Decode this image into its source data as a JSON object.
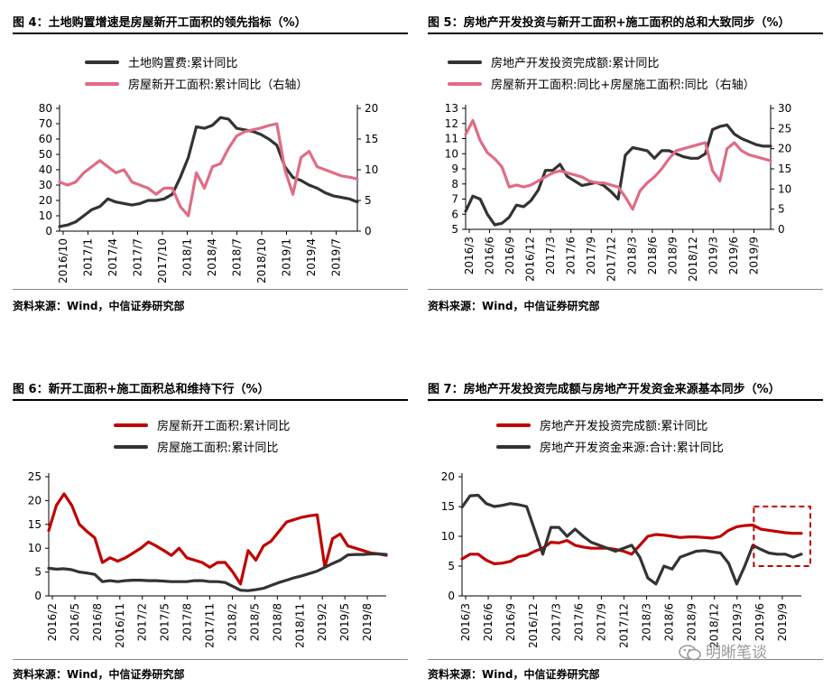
{
  "charts": [
    {
      "title": "图 4：土地购置增速是房屋新开工面积的领先指标（%）",
      "source": "资料来源：Wind，中信证券研究部"
    },
    {
      "title": "图 5：房地产开发投资与新开工面积+施工面积的总和大致同步（%）",
      "source": "资料来源：Wind，中信证券研究部"
    },
    {
      "title": "图 6：新开工面积+施工面积总和维持下行（%）",
      "source": "资料来源：Wind，中信证券研究部"
    },
    {
      "title": "图 7：房地产开发投资完成额与房地产开发资金来源基本同步（%）",
      "source": "资料来源：Wind，中信证券研究部"
    }
  ],
  "watermark": {
    "text": "明晰笔谈"
  },
  "chart_data": [
    {
      "type": "line",
      "x_ticks": [
        "2016/10",
        "2017/1",
        "2017/4",
        "2017/7",
        "2017/10",
        "2018/1",
        "2018/4",
        "2018/7",
        "2018/10",
        "2019/1",
        "2019/4",
        "2019/7"
      ],
      "ylim_left": [
        0,
        80
      ],
      "yticks_left": [
        0,
        10,
        20,
        30,
        40,
        50,
        60,
        70,
        80
      ],
      "ylim_right": [
        0,
        20
      ],
      "yticks_right": [
        0,
        5,
        10,
        15,
        20
      ],
      "grid": false,
      "legend_position": "top-left",
      "series": [
        {
          "name": "土地购置费:累计同比",
          "axis": "left",
          "color": "#333333",
          "values": [
            3,
            4,
            6,
            10,
            14,
            16,
            21,
            19,
            18,
            17,
            18,
            20,
            20,
            21,
            24,
            35,
            48,
            68,
            67,
            69,
            74,
            73,
            67,
            66,
            65,
            63,
            60,
            56,
            42,
            35,
            33,
            30,
            28,
            25,
            23,
            22,
            21,
            19
          ]
        },
        {
          "name": "房屋新开工面积:累计同比（右轴）",
          "axis": "right",
          "color": "#e06c85",
          "values": [
            8,
            7.5,
            8,
            9.5,
            10.5,
            11.5,
            10.5,
            9.5,
            10,
            8,
            7.5,
            7,
            6,
            7,
            7,
            4,
            2.5,
            9.5,
            7,
            10.5,
            11,
            13.5,
            15.5,
            16.2,
            16.5,
            16.8,
            17.2,
            17.5,
            10,
            6,
            12,
            13,
            10.5,
            10,
            9.5,
            9,
            8.8,
            8.5
          ]
        }
      ]
    },
    {
      "type": "line",
      "x_ticks": [
        "2016/3",
        "2016/6",
        "2016/9",
        "2016/12",
        "2017/3",
        "2017/6",
        "2017/9",
        "2017/12",
        "2018/3",
        "2018/6",
        "2018/9",
        "2018/12",
        "2019/3",
        "2019/6",
        "2019/9"
      ],
      "ylim_left": [
        5,
        13
      ],
      "yticks_left": [
        5,
        6,
        7,
        8,
        9,
        10,
        11,
        12,
        13
      ],
      "ylim_right": [
        0,
        30
      ],
      "yticks_right": [
        0,
        5,
        10,
        15,
        20,
        25,
        30
      ],
      "grid": false,
      "legend_position": "top-left",
      "series": [
        {
          "name": "房地产开发投资完成额:累计同比",
          "axis": "left",
          "color": "#333333",
          "values": [
            6.2,
            7.2,
            7.0,
            6.0,
            5.3,
            5.4,
            5.8,
            6.6,
            6.5,
            6.9,
            7.6,
            8.9,
            8.9,
            9.3,
            8.5,
            8.2,
            7.9,
            8.0,
            8.1,
            7.9,
            7.5,
            7.0,
            9.9,
            10.4,
            10.3,
            10.2,
            9.7,
            10.2,
            10.2,
            10.0,
            9.8,
            9.7,
            9.7,
            10.0,
            11.6,
            11.8,
            11.9,
            11.3,
            11.0,
            10.8,
            10.6,
            10.5,
            10.5
          ]
        },
        {
          "name": "房屋新开工面积:同比+房屋施工面积:同比（右轴）",
          "axis": "right",
          "color": "#e06c85",
          "values": [
            23.5,
            27.0,
            22.0,
            19.0,
            17.5,
            15.5,
            10.5,
            11.0,
            10.5,
            11.0,
            12.0,
            13.0,
            14.0,
            14.5,
            14.0,
            13.5,
            13.0,
            12.0,
            11.5,
            11.5,
            11.0,
            10.5,
            8.0,
            5.0,
            9.5,
            11.5,
            13.0,
            15.0,
            17.5,
            19.5,
            20.0,
            20.5,
            21.0,
            21.5,
            14.5,
            12.0,
            20.0,
            21.5,
            19.5,
            18.5,
            18.0,
            17.5,
            17.0
          ]
        }
      ]
    },
    {
      "type": "line",
      "x_ticks": [
        "2016/2",
        "2016/5",
        "2016/8",
        "2016/11",
        "2017/2",
        "2017/5",
        "2017/8",
        "2017/11",
        "2018/2",
        "2018/5",
        "2018/8",
        "2018/11",
        "2019/2",
        "2019/5",
        "2019/8"
      ],
      "ylim": [
        0,
        25
      ],
      "yticks": [
        0,
        5,
        10,
        15,
        20,
        25
      ],
      "grid": false,
      "legend_position": "top-left",
      "annotation": "dashed box highlighting 2019/2–2019/8",
      "series": [
        {
          "name": "房屋新开工面积:累计同比",
          "color": "#c00000",
          "values": [
            13.7,
            19.0,
            21.4,
            19.0,
            15.0,
            13.5,
            12.2,
            7.0,
            8.0,
            7.3,
            8.0,
            9.0,
            10.0,
            11.3,
            10.5,
            9.5,
            8.5,
            10.0,
            8.0,
            7.5,
            7.0,
            6.0,
            7.0,
            7.0,
            5.0,
            2.5,
            9.5,
            7.5,
            10.5,
            11.5,
            13.5,
            15.5,
            16.0,
            16.5,
            16.8,
            17.0,
            6.0,
            12.0,
            13.0,
            10.5,
            10.0,
            9.5,
            9.0,
            8.8,
            8.5
          ]
        },
        {
          "name": "房屋施工面积:累计同比",
          "color": "#333333",
          "values": [
            5.8,
            5.6,
            5.7,
            5.5,
            5.0,
            4.8,
            4.5,
            3.0,
            3.2,
            3.0,
            3.2,
            3.3,
            3.3,
            3.2,
            3.2,
            3.1,
            3.0,
            3.0,
            3.0,
            3.2,
            3.2,
            3.0,
            3.0,
            2.8,
            2.0,
            1.2,
            1.1,
            1.3,
            1.6,
            2.2,
            2.8,
            3.3,
            3.8,
            4.2,
            4.7,
            5.2,
            6.0,
            6.8,
            7.5,
            8.6,
            8.7,
            8.7,
            8.8,
            8.8,
            8.7
          ]
        }
      ]
    },
    {
      "type": "line",
      "x_ticks": [
        "2016/3",
        "2016/6",
        "2016/9",
        "2016/12",
        "2017/3",
        "2017/6",
        "2017/9",
        "2017/12",
        "2018/3",
        "2018/6",
        "2018/9",
        "2018/12",
        "2019/3",
        "2019/6",
        "2019/9"
      ],
      "ylim": [
        0,
        20
      ],
      "yticks": [
        0,
        5,
        10,
        15,
        20
      ],
      "grid": false,
      "legend_position": "top-left",
      "annotation": "dashed box highlighting 2019/3–2019/9",
      "series": [
        {
          "name": "房地产开发投资完成额:累计同比",
          "color": "#c00000",
          "values": [
            6.2,
            7.0,
            7.0,
            6.0,
            5.4,
            5.5,
            5.8,
            6.6,
            6.8,
            7.5,
            8.0,
            9.0,
            8.9,
            9.3,
            8.5,
            8.2,
            8.0,
            8.0,
            8.0,
            7.8,
            7.5,
            7.0,
            8.5,
            10.0,
            10.3,
            10.2,
            10.0,
            9.8,
            9.9,
            9.9,
            9.8,
            9.7,
            10.0,
            11.0,
            11.6,
            11.8,
            11.9,
            11.2,
            11.0,
            10.8,
            10.6,
            10.5,
            10.5
          ]
        },
        {
          "name": "房地产开发资金来源:合计:累计同比",
          "color": "#333333",
          "values": [
            14.9,
            16.8,
            16.9,
            15.5,
            15.0,
            15.2,
            15.5,
            15.3,
            15.0,
            11.0,
            7.0,
            11.5,
            11.5,
            10.0,
            11.2,
            10.0,
            9.0,
            8.5,
            8.0,
            7.5,
            8.0,
            8.5,
            6.5,
            3.0,
            2.0,
            5.0,
            4.5,
            6.5,
            7.0,
            7.5,
            7.6,
            7.4,
            7.2,
            5.5,
            2.0,
            5.0,
            8.5,
            7.8,
            7.2,
            7.0,
            7.0,
            6.5,
            7.0
          ]
        }
      ]
    }
  ]
}
